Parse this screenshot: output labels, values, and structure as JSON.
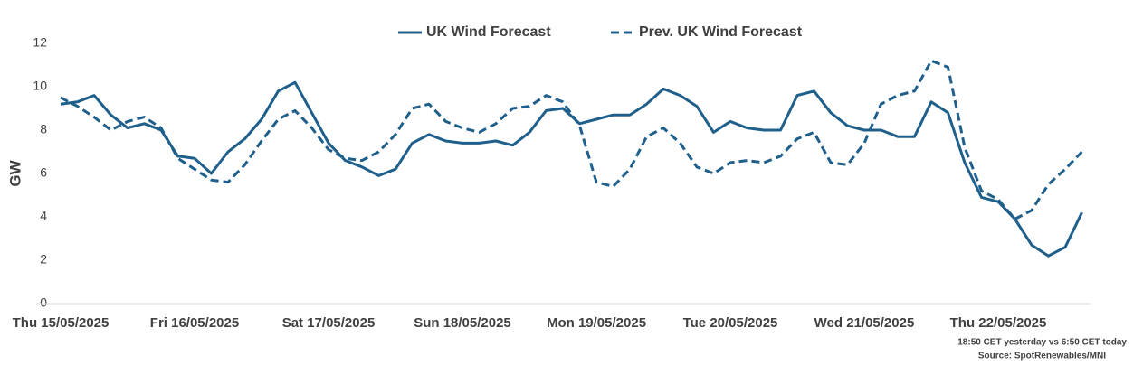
{
  "chart_data": {
    "type": "line",
    "y_label": "GW",
    "categories": [
      "Thu 15/05/2025",
      null,
      null,
      null,
      null,
      null,
      null,
      null,
      "Fri 16/05/2025",
      null,
      null,
      null,
      null,
      null,
      null,
      null,
      "Sat 17/05/2025",
      null,
      null,
      null,
      null,
      null,
      null,
      null,
      "Sun 18/05/2025",
      null,
      null,
      null,
      null,
      null,
      null,
      null,
      "Mon 19/05/2025",
      null,
      null,
      null,
      null,
      null,
      null,
      null,
      "Tue 20/05/2025",
      null,
      null,
      null,
      null,
      null,
      null,
      null,
      "Wed 21/05/2025",
      null,
      null,
      null,
      null,
      null,
      null,
      null,
      "Thu 22/05/2025",
      null,
      null,
      null,
      null,
      null
    ],
    "series": [
      {
        "name": "UK Wind Forecast",
        "color": "#1f5f8b",
        "dash": "solid",
        "values": [
          9.2,
          9.3,
          9.6,
          8.7,
          8.1,
          8.3,
          8.0,
          6.8,
          6.7,
          6.0,
          7.0,
          7.6,
          8.5,
          9.8,
          10.2,
          8.8,
          7.4,
          6.6,
          6.3,
          5.9,
          6.2,
          7.4,
          7.8,
          7.5,
          7.4,
          7.4,
          7.5,
          7.3,
          7.9,
          8.9,
          9.0,
          8.3,
          8.5,
          8.7,
          8.7,
          9.2,
          9.9,
          9.6,
          9.1,
          7.9,
          8.4,
          8.1,
          8.0,
          8.0,
          9.6,
          9.8,
          8.8,
          8.2,
          8.0,
          8.0,
          7.7,
          7.7,
          9.3,
          8.8,
          6.5,
          4.9,
          4.7,
          3.9,
          2.7,
          2.2,
          2.6,
          4.2
        ]
      },
      {
        "name": "Prev. UK Wind Forecast",
        "color": "#1f5f8b",
        "dash": "dashed",
        "values": [
          9.5,
          9.1,
          8.6,
          8.0,
          8.4,
          8.6,
          8.1,
          6.7,
          6.2,
          5.7,
          5.6,
          6.4,
          7.5,
          8.5,
          8.9,
          8.1,
          7.1,
          6.7,
          6.6,
          7.0,
          7.8,
          9.0,
          9.2,
          8.4,
          8.1,
          7.9,
          8.3,
          9.0,
          9.1,
          9.6,
          9.3,
          8.2,
          5.6,
          5.4,
          6.2,
          7.7,
          8.1,
          7.4,
          6.3,
          6.0,
          6.5,
          6.6,
          6.5,
          6.8,
          7.6,
          7.9,
          6.5,
          6.4,
          7.4,
          9.2,
          9.6,
          9.8,
          11.2,
          10.9,
          7.2,
          5.2,
          4.8,
          3.9,
          4.3,
          5.5,
          6.2,
          7.0
        ]
      }
    ],
    "ylim": [
      0,
      12
    ],
    "yticks": [
      0,
      2,
      4,
      6,
      8,
      10,
      12
    ],
    "legend": "top",
    "notes": [
      "18:50 CET yesterday vs  6:50 CET today",
      "Source: SpotRenewables/MNI"
    ]
  }
}
